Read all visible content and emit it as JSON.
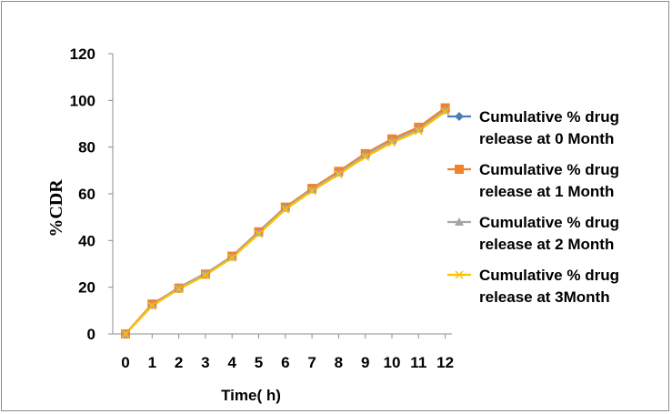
{
  "chart_data": {
    "type": "line",
    "title": "",
    "xlabel": "Time( h)",
    "ylabel": "%CDR",
    "x": [
      0,
      1,
      2,
      3,
      4,
      5,
      6,
      7,
      8,
      9,
      10,
      11,
      12
    ],
    "xlim": [
      0,
      12
    ],
    "ylim": [
      0,
      120
    ],
    "yticks": [
      0,
      20,
      40,
      60,
      80,
      100,
      120
    ],
    "grid": false,
    "legend_position": "right",
    "series": [
      {
        "name": "Cumulative % drug release at 0 Month",
        "legend_lines": [
          "Cumulative % drug",
          "release at 0 Month"
        ],
        "color": "#4a7ebb",
        "marker": "diamond",
        "values": [
          0,
          12.5,
          19.8,
          25.8,
          33.2,
          43.8,
          54.2,
          62.1,
          69.3,
          77.0,
          83.2,
          88.2,
          96.5
        ]
      },
      {
        "name": "Cumulative % drug release at 1 Month",
        "legend_lines": [
          "Cumulative % drug",
          "release at 1 Month"
        ],
        "color": "#f0812d",
        "marker": "square",
        "values": [
          0,
          12.8,
          19.6,
          25.6,
          33.3,
          43.7,
          54.3,
          62.3,
          69.6,
          77.2,
          83.5,
          88.5,
          96.8
        ]
      },
      {
        "name": "Cumulative % drug release at 2 Month",
        "legend_lines": [
          "Cumulative % drug",
          "release at 2 Month"
        ],
        "color": "#a5a5a5",
        "marker": "triangle",
        "values": [
          0,
          12.3,
          19.9,
          25.9,
          33.0,
          43.4,
          53.9,
          61.8,
          69.0,
          76.6,
          82.8,
          87.8,
          95.8
        ]
      },
      {
        "name": "Cumulative % drug release at 3Month",
        "legend_lines": [
          "Cumulative % drug",
          "release at 3Month"
        ],
        "color": "#ffc000",
        "marker": "x",
        "values": [
          0,
          12.0,
          19.2,
          25.1,
          32.6,
          42.8,
          53.3,
          61.2,
          68.3,
          75.8,
          81.9,
          86.9,
          95.2
        ]
      }
    ]
  }
}
